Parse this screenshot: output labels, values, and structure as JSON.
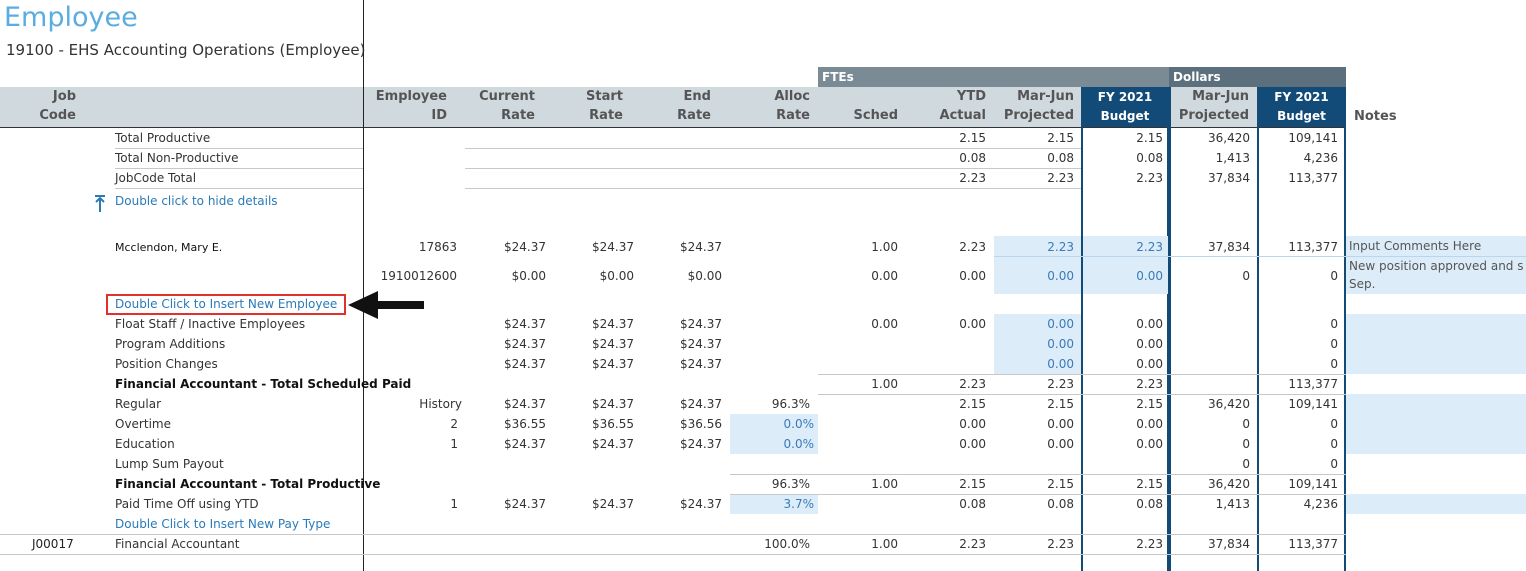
{
  "page": {
    "title": "Employee",
    "subtitle": "19100 - EHS Accounting Operations (Employee)"
  },
  "groups": {
    "ftes": "FTEs",
    "dollars": "Dollars"
  },
  "headers": {
    "job_code": [
      "Job",
      "Code"
    ],
    "employee_id": [
      "Employee",
      "ID"
    ],
    "current_rate": [
      "Current",
      "Rate"
    ],
    "start_rate": [
      "Start",
      "Rate"
    ],
    "end_rate": [
      "End",
      "Rate"
    ],
    "alloc_rate": [
      "Alloc",
      "Rate"
    ],
    "sched": "Sched",
    "ytd_actual": [
      "YTD",
      "Actual"
    ],
    "mar_jun_projected": [
      "Mar-Jun",
      "Projected"
    ],
    "fy2021_budget": [
      "FY 2021",
      "Budget"
    ],
    "dollars_projected": [
      "Mar-Jun",
      "Projected"
    ],
    "dollars_budget": [
      "FY 2021",
      "Budget"
    ],
    "notes": "Notes"
  },
  "summary": [
    {
      "label": "Total Productive",
      "ytd": "2.15",
      "proj": "2.15",
      "budget": "2.15",
      "d_proj": "36,420",
      "d_budget": "109,141"
    },
    {
      "label": "Total Non-Productive",
      "ytd": "0.08",
      "proj": "0.08",
      "budget": "0.08",
      "d_proj": "1,413",
      "d_budget": "4,236"
    },
    {
      "label": "JobCode Total",
      "ytd": "2.23",
      "proj": "2.23",
      "budget": "2.23",
      "d_proj": "37,834",
      "d_budget": "113,377"
    }
  ],
  "hide_details": "Double click to hide details",
  "employees": [
    {
      "name": "Mcclendon, Mary E.",
      "id": "17863",
      "current": "$24.37",
      "start": "$24.37",
      "end": "$24.37",
      "sched": "1.00",
      "ytd": "2.23",
      "proj": "2.23",
      "budget": "2.23",
      "d_proj": "37,834",
      "d_budget": "113,377",
      "note": "Input Comments Here"
    },
    {
      "name": "",
      "id": "1910012600",
      "current": "$0.00",
      "start": "$0.00",
      "end": "$0.00",
      "sched": "0.00",
      "ytd": "0.00",
      "proj": "0.00",
      "budget": "0.00",
      "d_proj": "0",
      "d_budget": "0",
      "note": "New position approved and s",
      "note2": "Sep."
    }
  ],
  "insert_employee": "Double Click to Insert New Employee",
  "rows": [
    {
      "label": "Float Staff / Inactive Employees",
      "current": "$24.37",
      "start": "$24.37",
      "end": "$24.37",
      "sched": "0.00",
      "ytd": "0.00",
      "proj": "0.00",
      "budget": "0.00",
      "d_budget": "0"
    },
    {
      "label": "Program Additions",
      "current": "$24.37",
      "start": "$24.37",
      "end": "$24.37",
      "proj": "0.00",
      "budget": "0.00",
      "d_budget": "0"
    },
    {
      "label": "Position Changes",
      "current": "$24.37",
      "start": "$24.37",
      "end": "$24.37",
      "proj": "0.00",
      "budget": "0.00",
      "d_budget": "0"
    },
    {
      "label": "Financial Accountant - Total Scheduled Paid",
      "bold": true,
      "sched": "1.00",
      "ytd": "2.23",
      "proj": "2.23",
      "budget": "2.23",
      "d_budget": "113,377"
    },
    {
      "label": "Regular",
      "id": "History",
      "current": "$24.37",
      "start": "$24.37",
      "end": "$24.37",
      "alloc": "96.3%",
      "ytd": "2.15",
      "proj": "2.15",
      "budget": "2.15",
      "d_proj": "36,420",
      "d_budget": "109,141"
    },
    {
      "label": "Overtime",
      "id": "2",
      "current": "$36.55",
      "start": "$36.55",
      "end": "$36.56",
      "alloc": "0.0%",
      "ytd": "0.00",
      "proj": "0.00",
      "budget": "0.00",
      "d_proj": "0",
      "d_budget": "0"
    },
    {
      "label": "Education",
      "id": "1",
      "current": "$24.37",
      "start": "$24.37",
      "end": "$24.37",
      "alloc": "0.0%",
      "ytd": "0.00",
      "proj": "0.00",
      "budget": "0.00",
      "d_proj": "0",
      "d_budget": "0"
    },
    {
      "label": "Lump Sum Payout",
      "d_proj": "0",
      "d_budget": "0"
    },
    {
      "label": "Financial Accountant - Total Productive",
      "bold": true,
      "alloc": "96.3%",
      "sched": "1.00",
      "ytd": "2.15",
      "proj": "2.15",
      "budget": "2.15",
      "d_proj": "36,420",
      "d_budget": "109,141"
    },
    {
      "label": "Paid Time Off using YTD",
      "id": "1",
      "current": "$24.37",
      "start": "$24.37",
      "end": "$24.37",
      "alloc": "3.7%",
      "ytd": "0.08",
      "proj": "0.08",
      "budget": "0.08",
      "d_proj": "1,413",
      "d_budget": "4,236"
    }
  ],
  "insert_paytype": "Double Click to Insert New Pay Type",
  "total_row": {
    "code": "J00017",
    "label": "Financial Accountant",
    "alloc": "100.0%",
    "sched": "1.00",
    "ytd": "2.23",
    "proj": "2.23",
    "budget": "2.23",
    "d_proj": "37,834",
    "d_budget": "113,377"
  },
  "colors": {
    "title": "#5aade0",
    "header_bg": "#d0d9de",
    "budget_header": "#124b78",
    "input_fill": "#dcedf9",
    "link": "#2a7ab8",
    "highlight_box": "#e0312a"
  }
}
